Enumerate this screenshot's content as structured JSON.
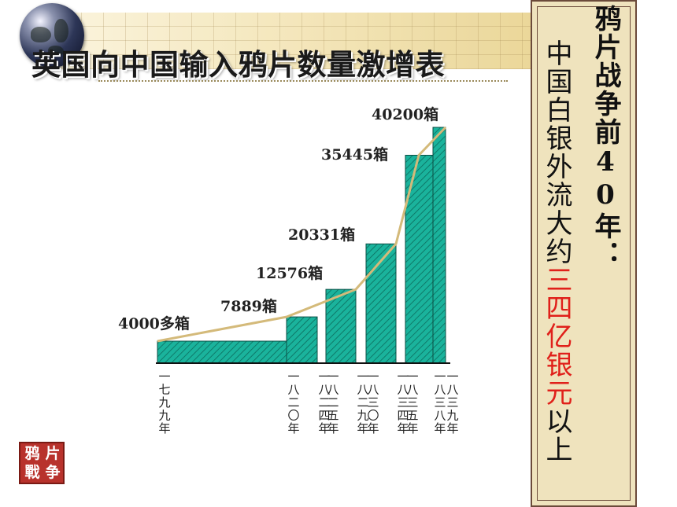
{
  "title": "英国向中国输入鸦片数量激增表",
  "chart_data": {
    "type": "bar",
    "title": "英国向中国输入鸦片数量激增表",
    "year_start": 1799,
    "years": [
      1799,
      1820,
      1824,
      1825,
      1829,
      1830,
      1834,
      1835,
      1838,
      1839
    ],
    "year_labels": [
      "一七九九年",
      "一八二〇年",
      "一八二四年",
      "一八二五年",
      "一八二九年",
      "一八三〇年",
      "一八三四年",
      "一八三五年",
      "一八三八年",
      "一八三九年"
    ],
    "bars": [
      {
        "from": 1799,
        "to": 1820,
        "value": 4000,
        "label": "4000多箱"
      },
      {
        "from": 1820,
        "to": 1824,
        "value": 7889,
        "label": "7889箱"
      },
      {
        "from": 1825,
        "to": 1829,
        "value": 12576,
        "label": "12576箱"
      },
      {
        "from": 1830,
        "to": 1834,
        "value": 20331,
        "label": "20331箱"
      },
      {
        "from": 1835,
        "to": 1838,
        "value": 35445,
        "label": "35445箱"
      },
      {
        "from": 1838,
        "to": 1839,
        "value": 40200,
        "label": "40200箱"
      }
    ],
    "trend_points": [
      [
        1799,
        4000
      ],
      [
        1820,
        7889
      ],
      [
        1829,
        12576
      ],
      [
        1834,
        20331
      ],
      [
        1837,
        35445
      ],
      [
        1839,
        40200
      ]
    ],
    "ylim": [
      0,
      40200
    ],
    "bar_color": "#1ab39c",
    "trend_color": "#d4ba7a"
  },
  "side": {
    "heading": "鸦片战争前40年：",
    "body_pre": "中国白银外流大约",
    "body_highlight": "三四亿银元",
    "body_post": "以上",
    "highlight_color": "#e0201a"
  },
  "seal": [
    "鸦",
    "片",
    "戰",
    "争"
  ],
  "decor_icons": [
    "globe-icon",
    "seal-icon"
  ]
}
